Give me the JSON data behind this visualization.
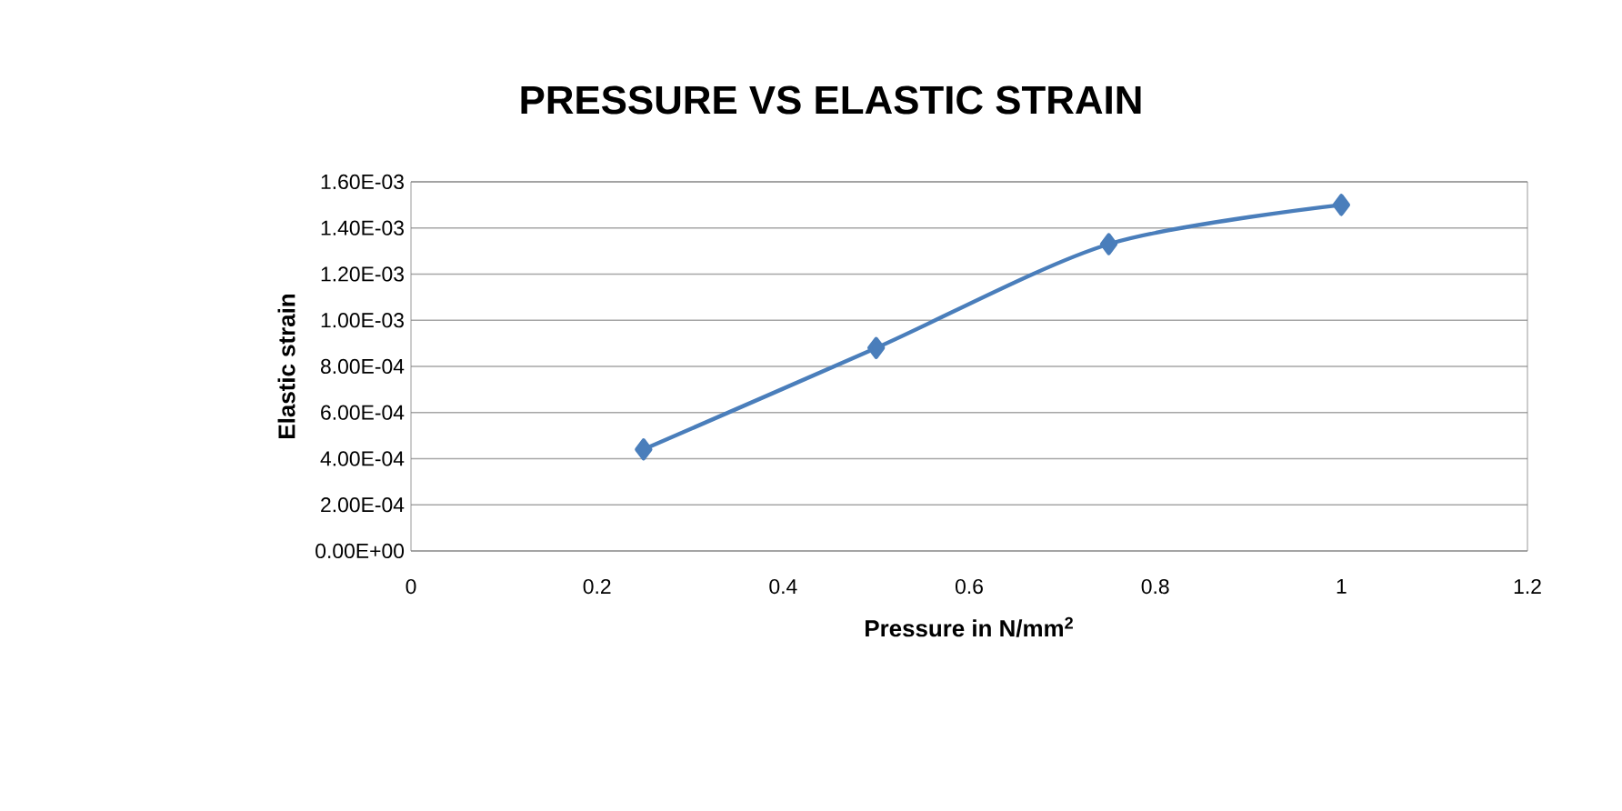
{
  "chart_data": {
    "type": "line",
    "title": "PRESSURE VS ELASTIC STRAIN",
    "xlabel": "Pressure in N/mm$^{2}$",
    "ylabel": "Elastic strain",
    "x": [
      0.25,
      0.5,
      0.75,
      1
    ],
    "series": [
      {
        "color": "#4a7ebb",
        "values": [
          0.00044,
          0.00088,
          0.00133,
          0.0015
        ]
      }
    ],
    "xlim": [
      0,
      1.2
    ],
    "xticks": [
      0,
      0.2,
      0.4,
      0.6,
      0.8,
      1,
      1.2
    ],
    "ylim": [
      0,
      0.0016
    ],
    "yticks": [
      {
        "value": 0,
        "label": "0.00E+00"
      },
      {
        "value": 0.0002,
        "label": "2.00E-04"
      },
      {
        "value": 0.0004,
        "label": "4.00E-04"
      },
      {
        "value": 0.0006,
        "label": "6.00E-04"
      },
      {
        "value": 0.0008,
        "label": "8.00E-04"
      },
      {
        "value": 0.001,
        "label": "1.00E-03"
      },
      {
        "value": 0.0012,
        "label": "1.20E-03"
      },
      {
        "value": 0.0014,
        "label": "1.40E-03"
      },
      {
        "value": 0.0016,
        "label": "1.60E-03"
      }
    ],
    "grid": "y",
    "marker": "diamond"
  }
}
